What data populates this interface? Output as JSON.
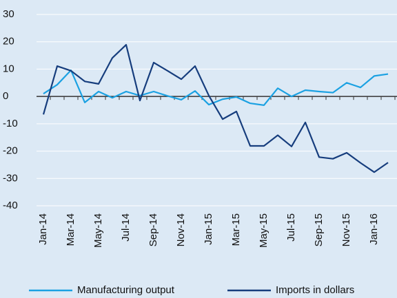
{
  "chart_data": {
    "type": "line",
    "categories": [
      "Jan-14",
      null,
      "Mar-14",
      null,
      "May-14",
      null,
      "Jul-14",
      null,
      "Sep-14",
      null,
      "Nov-14",
      null,
      "Jan-15",
      null,
      "Mar-15",
      null,
      "May-15",
      null,
      "Jul-15",
      null,
      "Sep-15",
      null,
      "Nov-15",
      null,
      "Jan-16",
      null
    ],
    "series": [
      {
        "name": "Manufacturing output",
        "color": "#1ba1e2",
        "values": [
          1,
          4.3,
          9.6,
          -2.2,
          1.8,
          -0.5,
          1.8,
          0.3,
          1.8,
          0.2,
          -1.2,
          2,
          -3,
          -1,
          -0.2,
          -2.5,
          -3.2,
          3,
          0,
          2.3,
          1.8,
          1.4,
          5,
          3.3,
          7.5,
          8.2
        ]
      },
      {
        "name": "Imports in dollars",
        "color": "#163d7d",
        "values": [
          -6.6,
          11.1,
          9.4,
          5.5,
          4.6,
          14.1,
          18.9,
          -1.5,
          12.4,
          9.4,
          6.3,
          11.1,
          0.3,
          -8.3,
          -5.5,
          -18.1,
          -18.1,
          -14.2,
          -18.3,
          -9.5,
          -22.2,
          -22.8,
          -20.6,
          -24.3,
          -27.7,
          -24.2
        ]
      }
    ],
    "ylim": [
      -40,
      30
    ],
    "yticks": [
      -40,
      -30,
      -20,
      -10,
      0,
      10,
      20,
      30
    ],
    "grid": true,
    "legend": "bottom"
  }
}
